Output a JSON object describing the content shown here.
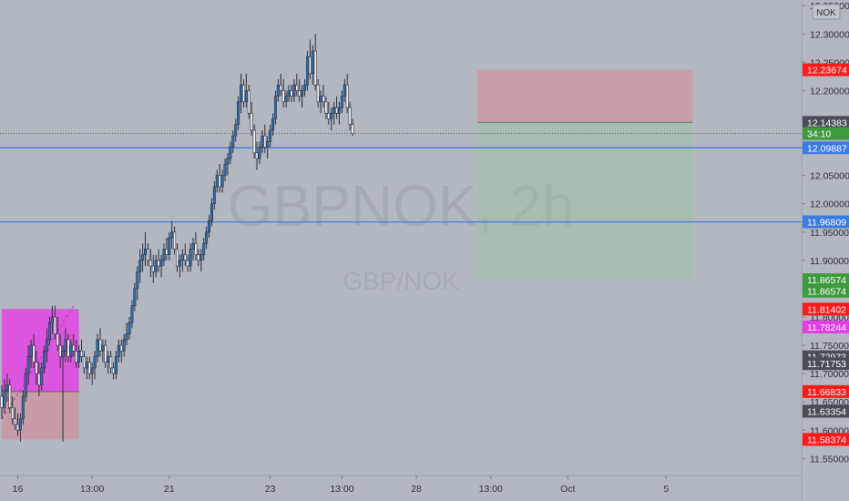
{
  "watermark": {
    "symbol": "GBPNOK, 2h",
    "pair": "GBP/NOK"
  },
  "currency_label": "NOK",
  "colors": {
    "background": "#b3b7c0",
    "up_body": "#2e6fb5",
    "down_body": "#f4f6fa",
    "wick": "#2b2f3a",
    "level_line": "#3a7be0",
    "red": "#ff1a1a",
    "magenta": "#e23ee8",
    "green_badge": "#3d9a3d",
    "dark_badge": "#4a4d55",
    "blue_badge": "#3a7be0",
    "stop_zone": "rgba(222,130,142,0.45)",
    "target_zone": "rgba(150,200,150,0.35)",
    "box_magenta": "rgba(230,60,230,0.80)",
    "box_red": "rgba(220,130,140,0.50)"
  },
  "chart_data": {
    "type": "candlestick",
    "ylim": [
      11.52,
      12.36
    ],
    "xlim": [
      0,
      300
    ],
    "y_ticks": [
      "11.55000",
      "11.60000",
      "11.65000",
      "11.70000",
      "11.75000",
      "11.80000",
      "11.85000",
      "11.90000",
      "11.95000",
      "12.00000",
      "12.05000",
      "12.10000",
      "12.15000",
      "12.20000",
      "12.25000",
      "12.30000",
      "12.35000"
    ],
    "x_ticks": [
      {
        "label": "16",
        "x": 6
      },
      {
        "label": "13:00",
        "x": 34
      },
      {
        "label": "21",
        "x": 63
      },
      {
        "label": "23",
        "x": 101
      },
      {
        "label": "13:00",
        "x": 128
      },
      {
        "label": "28",
        "x": 156
      },
      {
        "label": "13:00",
        "x": 184
      },
      {
        "label": "Oct",
        "x": 213
      },
      {
        "label": "5",
        "x": 250
      }
    ],
    "price_badges": [
      {
        "label": "12.23674",
        "value": 12.23674,
        "color": "red"
      },
      {
        "label": "12.14383",
        "value": 12.14383,
        "color": "dark"
      },
      {
        "label": "34:10",
        "value": 12.124,
        "color": "green"
      },
      {
        "label": "12.09887",
        "value": 12.09887,
        "color": "blue"
      },
      {
        "label": "11.96809",
        "value": 11.96809,
        "color": "blue"
      },
      {
        "label": "11.86574",
        "value": 11.86574,
        "color": "green"
      },
      {
        "label": "11.86574",
        "value": 11.8455,
        "color": "green"
      },
      {
        "label": "11.81402",
        "value": 11.81402,
        "color": "red"
      },
      {
        "label": "11.78244",
        "value": 11.78244,
        "color": "magenta"
      },
      {
        "label": "11.72973",
        "value": 11.72973,
        "color": "dark"
      },
      {
        "label": "11.71753",
        "value": 11.71753,
        "color": "dark"
      },
      {
        "label": "11.66833",
        "value": 11.66833,
        "color": "red"
      },
      {
        "label": "11.63354",
        "value": 11.63354,
        "color": "dark"
      },
      {
        "label": "11.58374",
        "value": 11.58374,
        "color": "red"
      }
    ],
    "horizontal_levels": [
      12.09887,
      11.96809
    ],
    "last_price": 12.124,
    "stop_zone": {
      "x0": 179,
      "x1": 260,
      "y0": 12.23674,
      "y1": 12.14383
    },
    "target_zone": {
      "x0": 179,
      "x1": 260,
      "y0": 12.14383,
      "y1": 11.86574
    },
    "left_box_magenta": {
      "x0": 0,
      "x1": 29,
      "y0": 11.81402,
      "y1": 11.66833
    },
    "left_box_red": {
      "x0": 0,
      "x1": 29,
      "y0": 11.66833,
      "y1": 11.58374
    },
    "candles": [
      {
        "x": 0,
        "o": 11.66,
        "h": 11.68,
        "l": 11.62,
        "c": 11.64
      },
      {
        "x": 1,
        "o": 11.64,
        "h": 11.69,
        "l": 11.63,
        "c": 11.67
      },
      {
        "x": 2,
        "o": 11.67,
        "h": 11.7,
        "l": 11.65,
        "c": 11.68
      },
      {
        "x": 3,
        "o": 11.68,
        "h": 11.69,
        "l": 11.63,
        "c": 11.64
      },
      {
        "x": 4,
        "o": 11.64,
        "h": 11.66,
        "l": 11.61,
        "c": 11.62
      },
      {
        "x": 5,
        "o": 11.62,
        "h": 11.64,
        "l": 11.6,
        "c": 11.61
      },
      {
        "x": 6,
        "o": 11.61,
        "h": 11.63,
        "l": 11.59,
        "c": 11.6
      },
      {
        "x": 7,
        "o": 11.6,
        "h": 11.63,
        "l": 11.58,
        "c": 11.62
      },
      {
        "x": 8,
        "o": 11.62,
        "h": 11.67,
        "l": 11.61,
        "c": 11.66
      },
      {
        "x": 9,
        "o": 11.66,
        "h": 11.71,
        "l": 11.65,
        "c": 11.7
      },
      {
        "x": 10,
        "o": 11.7,
        "h": 11.75,
        "l": 11.68,
        "c": 11.73
      },
      {
        "x": 11,
        "o": 11.73,
        "h": 11.76,
        "l": 11.71,
        "c": 11.75
      },
      {
        "x": 12,
        "o": 11.75,
        "h": 11.77,
        "l": 11.71,
        "c": 11.72
      },
      {
        "x": 13,
        "o": 11.72,
        "h": 11.74,
        "l": 11.68,
        "c": 11.7
      },
      {
        "x": 14,
        "o": 11.7,
        "h": 11.72,
        "l": 11.66,
        "c": 11.68
      },
      {
        "x": 15,
        "o": 11.68,
        "h": 11.72,
        "l": 11.67,
        "c": 11.71
      },
      {
        "x": 16,
        "o": 11.71,
        "h": 11.75,
        "l": 11.7,
        "c": 11.74
      },
      {
        "x": 17,
        "o": 11.74,
        "h": 11.78,
        "l": 11.72,
        "c": 11.76
      },
      {
        "x": 18,
        "o": 11.76,
        "h": 11.8,
        "l": 11.75,
        "c": 11.79
      },
      {
        "x": 19,
        "o": 11.79,
        "h": 11.82,
        "l": 11.77,
        "c": 11.8
      },
      {
        "x": 20,
        "o": 11.8,
        "h": 11.82,
        "l": 11.76,
        "c": 11.77
      },
      {
        "x": 21,
        "o": 11.77,
        "h": 11.8,
        "l": 11.74,
        "c": 11.75
      },
      {
        "x": 22,
        "o": 11.75,
        "h": 11.77,
        "l": 11.71,
        "c": 11.73
      },
      {
        "x": 23,
        "o": 11.73,
        "h": 11.75,
        "l": 11.58,
        "c": 11.74
      },
      {
        "x": 24,
        "o": 11.74,
        "h": 11.78,
        "l": 11.72,
        "c": 11.76
      },
      {
        "x": 25,
        "o": 11.76,
        "h": 11.77,
        "l": 11.72,
        "c": 11.73
      },
      {
        "x": 26,
        "o": 11.73,
        "h": 11.76,
        "l": 11.72,
        "c": 11.75
      },
      {
        "x": 27,
        "o": 11.75,
        "h": 11.77,
        "l": 11.73,
        "c": 11.74
      },
      {
        "x": 28,
        "o": 11.74,
        "h": 11.76,
        "l": 11.71,
        "c": 11.72
      },
      {
        "x": 29,
        "o": 11.72,
        "h": 11.75,
        "l": 11.71,
        "c": 11.74
      },
      {
        "x": 30,
        "o": 11.74,
        "h": 11.76,
        "l": 11.72,
        "c": 11.73
      },
      {
        "x": 31,
        "o": 11.73,
        "h": 11.74,
        "l": 11.7,
        "c": 11.71
      },
      {
        "x": 32,
        "o": 11.71,
        "h": 11.73,
        "l": 11.69,
        "c": 11.72
      },
      {
        "x": 33,
        "o": 11.72,
        "h": 11.73,
        "l": 11.69,
        "c": 11.7
      },
      {
        "x": 34,
        "o": 11.7,
        "h": 11.72,
        "l": 11.68,
        "c": 11.71
      },
      {
        "x": 35,
        "o": 11.71,
        "h": 11.74,
        "l": 11.69,
        "c": 11.73
      },
      {
        "x": 36,
        "o": 11.73,
        "h": 11.77,
        "l": 11.72,
        "c": 11.76
      },
      {
        "x": 37,
        "o": 11.76,
        "h": 11.78,
        "l": 11.73,
        "c": 11.74
      },
      {
        "x": 38,
        "o": 11.74,
        "h": 11.76,
        "l": 11.72,
        "c": 11.75
      },
      {
        "x": 39,
        "o": 11.75,
        "h": 11.76,
        "l": 11.71,
        "c": 11.72
      },
      {
        "x": 40,
        "o": 11.72,
        "h": 11.74,
        "l": 11.7,
        "c": 11.73
      },
      {
        "x": 41,
        "o": 11.73,
        "h": 11.74,
        "l": 11.7,
        "c": 11.71
      },
      {
        "x": 42,
        "o": 11.71,
        "h": 11.72,
        "l": 11.69,
        "c": 11.7
      },
      {
        "x": 43,
        "o": 11.7,
        "h": 11.74,
        "l": 11.69,
        "c": 11.73
      },
      {
        "x": 44,
        "o": 11.73,
        "h": 11.76,
        "l": 11.72,
        "c": 11.75
      },
      {
        "x": 45,
        "o": 11.75,
        "h": 11.76,
        "l": 11.72,
        "c": 11.74
      },
      {
        "x": 46,
        "o": 11.74,
        "h": 11.77,
        "l": 11.73,
        "c": 11.76
      },
      {
        "x": 47,
        "o": 11.76,
        "h": 11.79,
        "l": 11.75,
        "c": 11.77
      },
      {
        "x": 48,
        "o": 11.77,
        "h": 11.8,
        "l": 11.76,
        "c": 11.79
      },
      {
        "x": 49,
        "o": 11.79,
        "h": 11.83,
        "l": 11.78,
        "c": 11.82
      },
      {
        "x": 50,
        "o": 11.82,
        "h": 11.86,
        "l": 11.81,
        "c": 11.85
      },
      {
        "x": 51,
        "o": 11.85,
        "h": 11.89,
        "l": 11.83,
        "c": 11.88
      },
      {
        "x": 52,
        "o": 11.88,
        "h": 11.92,
        "l": 11.86,
        "c": 11.9
      },
      {
        "x": 53,
        "o": 11.9,
        "h": 11.93,
        "l": 11.88,
        "c": 11.91
      },
      {
        "x": 54,
        "o": 11.91,
        "h": 11.95,
        "l": 11.89,
        "c": 11.92
      },
      {
        "x": 55,
        "o": 11.92,
        "h": 11.93,
        "l": 11.89,
        "c": 11.9
      },
      {
        "x": 56,
        "o": 11.9,
        "h": 11.92,
        "l": 11.87,
        "c": 11.89
      },
      {
        "x": 57,
        "o": 11.89,
        "h": 11.91,
        "l": 11.86,
        "c": 11.88
      },
      {
        "x": 58,
        "o": 11.88,
        "h": 11.91,
        "l": 11.87,
        "c": 11.9
      },
      {
        "x": 59,
        "o": 11.9,
        "h": 11.92,
        "l": 11.88,
        "c": 11.89
      },
      {
        "x": 60,
        "o": 11.89,
        "h": 11.91,
        "l": 11.87,
        "c": 11.9
      },
      {
        "x": 61,
        "o": 11.9,
        "h": 11.93,
        "l": 11.89,
        "c": 11.92
      },
      {
        "x": 62,
        "o": 11.92,
        "h": 11.94,
        "l": 11.9,
        "c": 11.91
      },
      {
        "x": 63,
        "o": 11.91,
        "h": 11.95,
        "l": 11.9,
        "c": 11.94
      },
      {
        "x": 64,
        "o": 11.94,
        "h": 11.97,
        "l": 11.92,
        "c": 11.95
      },
      {
        "x": 65,
        "o": 11.95,
        "h": 11.96,
        "l": 11.91,
        "c": 11.92
      },
      {
        "x": 66,
        "o": 11.92,
        "h": 11.93,
        "l": 11.88,
        "c": 11.89
      },
      {
        "x": 67,
        "o": 11.89,
        "h": 11.91,
        "l": 11.87,
        "c": 11.9
      },
      {
        "x": 68,
        "o": 11.9,
        "h": 11.92,
        "l": 11.88,
        "c": 11.91
      },
      {
        "x": 69,
        "o": 11.91,
        "h": 11.93,
        "l": 11.89,
        "c": 11.9
      },
      {
        "x": 70,
        "o": 11.9,
        "h": 11.91,
        "l": 11.88,
        "c": 11.89
      },
      {
        "x": 71,
        "o": 11.89,
        "h": 11.93,
        "l": 11.88,
        "c": 11.92
      },
      {
        "x": 72,
        "o": 11.92,
        "h": 11.94,
        "l": 11.9,
        "c": 11.93
      },
      {
        "x": 73,
        "o": 11.93,
        "h": 11.95,
        "l": 11.9,
        "c": 11.91
      },
      {
        "x": 74,
        "o": 11.91,
        "h": 11.92,
        "l": 11.89,
        "c": 11.9
      },
      {
        "x": 75,
        "o": 11.9,
        "h": 11.92,
        "l": 11.88,
        "c": 11.91
      },
      {
        "x": 76,
        "o": 11.91,
        "h": 11.94,
        "l": 11.9,
        "c": 11.93
      },
      {
        "x": 77,
        "o": 11.93,
        "h": 11.96,
        "l": 11.92,
        "c": 11.95
      },
      {
        "x": 78,
        "o": 11.95,
        "h": 11.98,
        "l": 11.94,
        "c": 11.97
      },
      {
        "x": 79,
        "o": 11.97,
        "h": 12.01,
        "l": 11.96,
        "c": 12.0
      },
      {
        "x": 80,
        "o": 12.0,
        "h": 12.04,
        "l": 11.99,
        "c": 12.03
      },
      {
        "x": 81,
        "o": 12.03,
        "h": 12.06,
        "l": 12.02,
        "c": 12.05
      },
      {
        "x": 82,
        "o": 12.05,
        "h": 12.07,
        "l": 12.02,
        "c": 12.03
      },
      {
        "x": 83,
        "o": 12.03,
        "h": 12.06,
        "l": 12.02,
        "c": 12.05
      },
      {
        "x": 84,
        "o": 12.05,
        "h": 12.08,
        "l": 12.04,
        "c": 12.07
      },
      {
        "x": 85,
        "o": 12.07,
        "h": 12.09,
        "l": 12.05,
        "c": 12.08
      },
      {
        "x": 86,
        "o": 12.08,
        "h": 12.11,
        "l": 12.07,
        "c": 12.1
      },
      {
        "x": 87,
        "o": 12.1,
        "h": 12.13,
        "l": 12.09,
        "c": 12.12
      },
      {
        "x": 88,
        "o": 12.12,
        "h": 12.15,
        "l": 12.11,
        "c": 12.14
      },
      {
        "x": 89,
        "o": 12.14,
        "h": 12.19,
        "l": 12.13,
        "c": 12.18
      },
      {
        "x": 90,
        "o": 12.18,
        "h": 12.23,
        "l": 12.16,
        "c": 12.21
      },
      {
        "x": 91,
        "o": 12.21,
        "h": 12.22,
        "l": 12.17,
        "c": 12.18
      },
      {
        "x": 92,
        "o": 12.18,
        "h": 12.23,
        "l": 12.17,
        "c": 12.2
      },
      {
        "x": 93,
        "o": 12.2,
        "h": 12.21,
        "l": 12.15,
        "c": 12.16
      },
      {
        "x": 94,
        "o": 12.16,
        "h": 12.18,
        "l": 12.12,
        "c": 12.13
      },
      {
        "x": 95,
        "o": 12.13,
        "h": 12.14,
        "l": 12.08,
        "c": 12.09
      },
      {
        "x": 96,
        "o": 12.09,
        "h": 12.11,
        "l": 12.06,
        "c": 12.08
      },
      {
        "x": 97,
        "o": 12.08,
        "h": 12.11,
        "l": 12.07,
        "c": 12.1
      },
      {
        "x": 98,
        "o": 12.1,
        "h": 12.13,
        "l": 12.09,
        "c": 12.12
      },
      {
        "x": 99,
        "o": 12.12,
        "h": 12.14,
        "l": 12.09,
        "c": 12.1
      },
      {
        "x": 100,
        "o": 12.1,
        "h": 12.12,
        "l": 12.08,
        "c": 12.11
      },
      {
        "x": 101,
        "o": 12.11,
        "h": 12.14,
        "l": 12.1,
        "c": 12.13
      },
      {
        "x": 102,
        "o": 12.13,
        "h": 12.16,
        "l": 12.12,
        "c": 12.15
      },
      {
        "x": 103,
        "o": 12.15,
        "h": 12.2,
        "l": 12.14,
        "c": 12.19
      },
      {
        "x": 104,
        "o": 12.19,
        "h": 12.22,
        "l": 12.18,
        "c": 12.21
      },
      {
        "x": 105,
        "o": 12.21,
        "h": 12.23,
        "l": 12.19,
        "c": 12.2
      },
      {
        "x": 106,
        "o": 12.2,
        "h": 12.22,
        "l": 12.17,
        "c": 12.18
      },
      {
        "x": 107,
        "o": 12.18,
        "h": 12.2,
        "l": 12.17,
        "c": 12.19
      },
      {
        "x": 108,
        "o": 12.19,
        "h": 12.21,
        "l": 12.18,
        "c": 12.2
      },
      {
        "x": 109,
        "o": 12.2,
        "h": 12.21,
        "l": 12.18,
        "c": 12.19
      },
      {
        "x": 110,
        "o": 12.19,
        "h": 12.22,
        "l": 12.18,
        "c": 12.21
      },
      {
        "x": 111,
        "o": 12.21,
        "h": 12.23,
        "l": 12.19,
        "c": 12.2
      },
      {
        "x": 112,
        "o": 12.2,
        "h": 12.22,
        "l": 12.18,
        "c": 12.19
      },
      {
        "x": 113,
        "o": 12.19,
        "h": 12.21,
        "l": 12.17,
        "c": 12.2
      },
      {
        "x": 114,
        "o": 12.2,
        "h": 12.22,
        "l": 12.19,
        "c": 12.21
      },
      {
        "x": 115,
        "o": 12.21,
        "h": 12.27,
        "l": 12.2,
        "c": 12.26
      },
      {
        "x": 116,
        "o": 12.26,
        "h": 12.29,
        "l": 12.22,
        "c": 12.23
      },
      {
        "x": 117,
        "o": 12.23,
        "h": 12.28,
        "l": 12.21,
        "c": 12.27
      },
      {
        "x": 118,
        "o": 12.27,
        "h": 12.3,
        "l": 12.2,
        "c": 12.21
      },
      {
        "x": 119,
        "o": 12.21,
        "h": 12.22,
        "l": 12.17,
        "c": 12.18
      },
      {
        "x": 120,
        "o": 12.18,
        "h": 12.2,
        "l": 12.16,
        "c": 12.19
      },
      {
        "x": 121,
        "o": 12.19,
        "h": 12.21,
        "l": 12.17,
        "c": 12.18
      },
      {
        "x": 122,
        "o": 12.18,
        "h": 12.19,
        "l": 12.15,
        "c": 12.16
      },
      {
        "x": 123,
        "o": 12.16,
        "h": 12.18,
        "l": 12.14,
        "c": 12.15
      },
      {
        "x": 124,
        "o": 12.15,
        "h": 12.17,
        "l": 12.13,
        "c": 12.16
      },
      {
        "x": 125,
        "o": 12.16,
        "h": 12.18,
        "l": 12.14,
        "c": 12.17
      },
      {
        "x": 126,
        "o": 12.17,
        "h": 12.19,
        "l": 12.15,
        "c": 12.16
      },
      {
        "x": 127,
        "o": 12.16,
        "h": 12.18,
        "l": 12.14,
        "c": 12.17
      },
      {
        "x": 128,
        "o": 12.17,
        "h": 12.2,
        "l": 12.16,
        "c": 12.19
      },
      {
        "x": 129,
        "o": 12.19,
        "h": 12.22,
        "l": 12.18,
        "c": 12.21
      },
      {
        "x": 130,
        "o": 12.21,
        "h": 12.23,
        "l": 12.16,
        "c": 12.17
      },
      {
        "x": 131,
        "o": 12.17,
        "h": 12.18,
        "l": 12.13,
        "c": 12.14
      },
      {
        "x": 132,
        "o": 12.14,
        "h": 12.15,
        "l": 12.12,
        "c": 12.124
      }
    ]
  }
}
